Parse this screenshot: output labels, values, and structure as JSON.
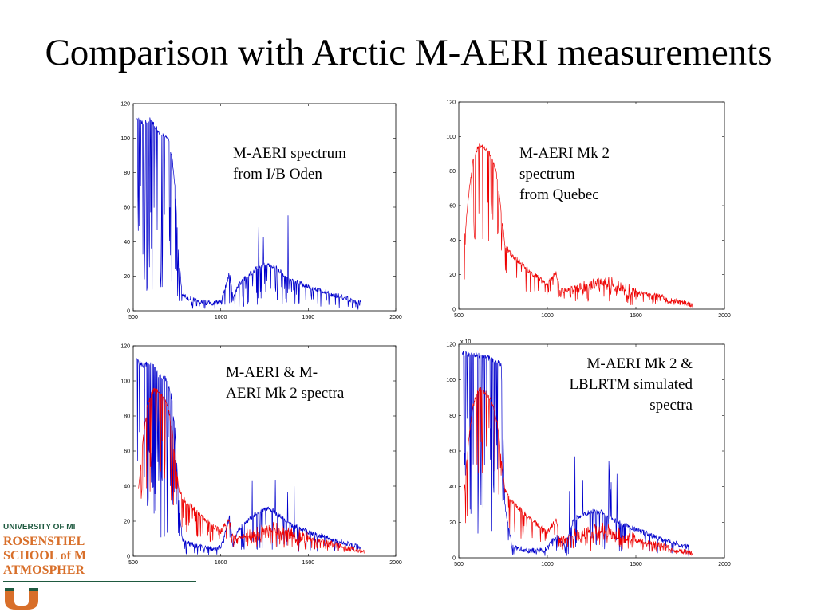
{
  "slide": {
    "title": "Comparison with Arctic M-AERI measurements"
  },
  "logo": {
    "university": "UNIVERSITY OF MI",
    "line1": "ROSENSTIEL",
    "line2": "SCHOOL of M",
    "line3": "ATMOSPHER",
    "colors": {
      "orange": "#d86f2a",
      "green": "#1f5a40"
    }
  },
  "annotations": {
    "tl": [
      "M-AERI spectrum",
      "from I/B Oden"
    ],
    "tr": [
      "M-AERI Mk 2",
      "spectrum",
      "from Quebec"
    ],
    "bl": [
      "M-AERI & M-",
      "AERI Mk 2 spectra"
    ],
    "br": [
      "M-AERI Mk 2 &",
      "LBLRTM simulated",
      "spectra"
    ]
  },
  "colors": {
    "blue": "#0000cc",
    "red": "#ee0000"
  },
  "chart_data": [
    {
      "type": "line",
      "xlim": [
        500,
        2000
      ],
      "ylim": [
        0,
        120
      ],
      "xticks": [
        "500",
        "1000",
        "1500",
        "2000"
      ],
      "yticks": [
        "0",
        "20",
        "40",
        "60",
        "80",
        "100",
        "120"
      ],
      "series": [
        {
          "color": "#0000cc",
          "x": [
            520,
            540,
            560,
            580,
            600,
            620,
            640,
            660,
            680,
            700,
            720,
            740,
            760,
            780,
            800,
            850,
            900,
            950,
            1000,
            1030,
            1050,
            1070,
            1100,
            1150,
            1200,
            1250,
            1300,
            1350,
            1400,
            1450,
            1500,
            1550,
            1600,
            1650,
            1700,
            1750,
            1800
          ],
          "y": [
            112,
            110,
            108,
            110,
            111,
            108,
            104,
            102,
            102,
            99,
            90,
            70,
            30,
            10,
            8,
            6,
            5,
            4,
            5,
            15,
            22,
            6,
            15,
            20,
            24,
            27,
            26,
            22,
            18,
            16,
            14,
            12,
            11,
            9,
            8,
            6,
            5
          ]
        }
      ]
    },
    {
      "type": "line",
      "xlim": [
        500,
        2000
      ],
      "ylim": [
        0,
        120
      ],
      "xticks": [
        "500",
        "1000",
        "1500",
        "2000"
      ],
      "yticks": [
        "0",
        "20",
        "40",
        "60",
        "80",
        "100",
        "120"
      ],
      "series": [
        {
          "color": "#ee0000",
          "x": [
            530,
            560,
            580,
            600,
            620,
            640,
            660,
            680,
            700,
            720,
            740,
            760,
            780,
            800,
            850,
            900,
            950,
            1000,
            1030,
            1050,
            1070,
            1100,
            1150,
            1200,
            1250,
            1300,
            1350,
            1400,
            1450,
            1500,
            1550,
            1600,
            1650,
            1700,
            1750,
            1800,
            1820
          ],
          "y": [
            38,
            70,
            85,
            92,
            95,
            94,
            92,
            89,
            84,
            74,
            55,
            38,
            34,
            31,
            27,
            22,
            18,
            14,
            19,
            21,
            11,
            11,
            12,
            13,
            15,
            16,
            15,
            13,
            11,
            10,
            9,
            8,
            7,
            5,
            4,
            3,
            2
          ]
        }
      ]
    },
    {
      "type": "line",
      "xlim": [
        500,
        2000
      ],
      "ylim": [
        0,
        120
      ],
      "xticks": [
        "500",
        "1000",
        "1500",
        "2000"
      ],
      "yticks": [
        "0",
        "20",
        "40",
        "60",
        "80",
        "100",
        "120"
      ],
      "series": [
        {
          "color": "#0000cc",
          "x": [
            520,
            540,
            560,
            580,
            600,
            620,
            640,
            660,
            680,
            700,
            720,
            740,
            760,
            780,
            800,
            850,
            900,
            950,
            1000,
            1030,
            1050,
            1070,
            1100,
            1150,
            1200,
            1250,
            1300,
            1350,
            1400,
            1450,
            1500,
            1550,
            1600,
            1650,
            1700,
            1750,
            1800
          ],
          "y": [
            112,
            110,
            108,
            110,
            111,
            108,
            104,
            102,
            102,
            99,
            90,
            70,
            30,
            10,
            8,
            6,
            5,
            4,
            5,
            15,
            22,
            6,
            15,
            20,
            24,
            27,
            26,
            22,
            18,
            16,
            14,
            12,
            11,
            9,
            8,
            6,
            5
          ]
        },
        {
          "color": "#ee0000",
          "x": [
            530,
            560,
            580,
            600,
            620,
            640,
            660,
            680,
            700,
            720,
            740,
            760,
            780,
            800,
            850,
            900,
            950,
            1000,
            1030,
            1050,
            1070,
            1100,
            1150,
            1200,
            1250,
            1300,
            1350,
            1400,
            1450,
            1500,
            1550,
            1600,
            1650,
            1700,
            1750,
            1800,
            1820
          ],
          "y": [
            38,
            70,
            85,
            92,
            95,
            94,
            92,
            89,
            84,
            74,
            55,
            38,
            34,
            31,
            27,
            22,
            18,
            14,
            19,
            21,
            11,
            11,
            12,
            13,
            15,
            16,
            15,
            13,
            11,
            10,
            9,
            8,
            7,
            5,
            4,
            3,
            2
          ]
        }
      ]
    },
    {
      "type": "line",
      "xlim": [
        500,
        2000
      ],
      "ylim": [
        0,
        120
      ],
      "xticks": [
        "500",
        "1000",
        "1500",
        "2000"
      ],
      "yticks": [
        "0",
        "20",
        "40",
        "60",
        "80",
        "100",
        "120"
      ],
      "y_multiplier": "x 10",
      "series": [
        {
          "color": "#0000cc",
          "x": [
            520,
            560,
            600,
            640,
            680,
            720,
            740,
            760,
            800,
            850,
            900,
            950,
            1000,
            1030,
            1060,
            1100,
            1150,
            1200,
            1250,
            1300,
            1350,
            1400,
            1450,
            1500,
            1550,
            1600,
            1650,
            1700,
            1750,
            1800
          ],
          "y": [
            115,
            114,
            114,
            113,
            112,
            110,
            108,
            30,
            6,
            5,
            4,
            4,
            5,
            10,
            12,
            6,
            22,
            24,
            26,
            26,
            22,
            20,
            18,
            16,
            14,
            12,
            10,
            9,
            7,
            6
          ]
        },
        {
          "color": "#ee0000",
          "x": [
            530,
            560,
            580,
            600,
            620,
            640,
            660,
            680,
            700,
            720,
            740,
            760,
            780,
            800,
            850,
            900,
            950,
            1000,
            1030,
            1050,
            1070,
            1100,
            1150,
            1200,
            1250,
            1300,
            1350,
            1400,
            1450,
            1500,
            1550,
            1600,
            1650,
            1700,
            1750,
            1800,
            1820
          ],
          "y": [
            38,
            70,
            85,
            92,
            95,
            94,
            92,
            89,
            84,
            74,
            55,
            38,
            34,
            31,
            27,
            22,
            18,
            14,
            19,
            21,
            11,
            11,
            12,
            13,
            15,
            16,
            15,
            13,
            11,
            10,
            9,
            8,
            7,
            5,
            4,
            3,
            2
          ]
        }
      ]
    }
  ]
}
